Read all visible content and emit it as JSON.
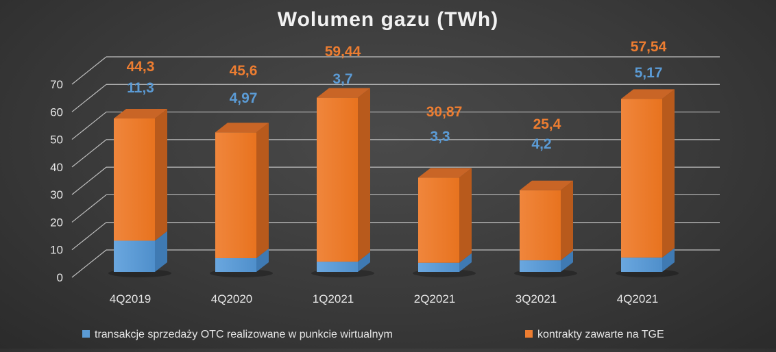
{
  "colors": {
    "otc": "#5b9bd5",
    "tge": "#ed7d31",
    "grid": "#bfbfbf",
    "text": "#e6e6e6"
  },
  "chart_data": {
    "type": "bar",
    "stacked": true,
    "three_d": true,
    "title": "Wolumen  gazu (TWh)",
    "xlabel": "",
    "ylabel": "",
    "ylim": [
      0,
      70
    ],
    "yticks": [
      "0",
      "10",
      "20",
      "30",
      "40",
      "50",
      "60",
      "70"
    ],
    "grid": true,
    "legend_position": "bottom",
    "categories": [
      "4Q2019",
      "4Q2020",
      "1Q2021",
      "2Q2021",
      "3Q2021",
      "4Q2021"
    ],
    "series": [
      {
        "name": "transakcje sprzedaży OTC realizowane w punkcie wirtualnym",
        "color": "#5b9bd5",
        "values": [
          11.3,
          4.97,
          3.7,
          3.3,
          4.2,
          5.17
        ],
        "labels": [
          "11,3",
          "4,97",
          "3,7",
          "3,3",
          "4,2",
          "5,17"
        ]
      },
      {
        "name": "kontrakty zawarte na TGE",
        "color": "#ed7d31",
        "values": [
          44.3,
          45.6,
          59.44,
          30.87,
          25.4,
          57.54
        ],
        "labels": [
          "44,3",
          "45,6",
          "59,44",
          "30,87",
          "25,4",
          "57,54"
        ]
      }
    ]
  }
}
